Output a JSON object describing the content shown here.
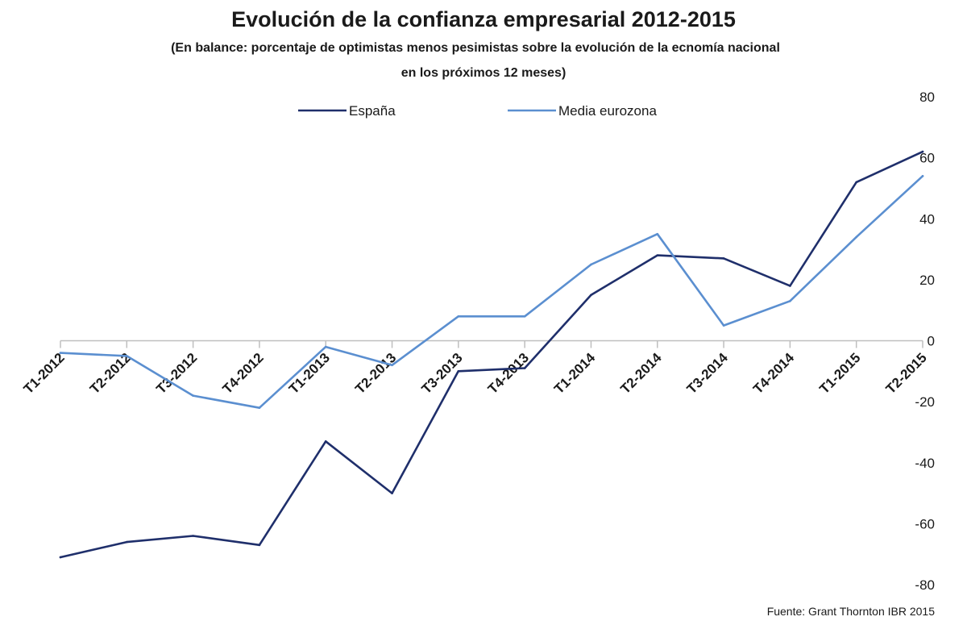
{
  "chart_data": {
    "type": "line",
    "title": "Evolución de la confianza empresarial 2012-2015",
    "subtitle_line1": "(En balance: porcentaje de optimistas menos pesimistas sobre la evolución de la ecnomía nacional",
    "subtitle_line2": "en los próximos 12 meses)",
    "categories": [
      "T1-2012",
      "T2-2012",
      "T3-2012",
      "T4-2012",
      "T1-2013",
      "T2-2013",
      "T3-2013",
      "T4-2013",
      "T1-2014",
      "T2-2014",
      "T3-2014",
      "T4-2014",
      "T1-2015",
      "T2-2015"
    ],
    "series": [
      {
        "name": "España",
        "color": "#1f2f6b",
        "values": [
          -71,
          -66,
          -64,
          -67,
          -33,
          -50,
          -10,
          -9,
          15,
          28,
          27,
          18,
          52,
          62
        ]
      },
      {
        "name": "Media eurozona",
        "color": "#5b8fd0",
        "values": [
          -4,
          -5,
          -18,
          -22,
          -2,
          -8,
          8,
          8,
          25,
          35,
          5,
          13,
          34,
          54
        ]
      }
    ],
    "ylim": [
      -80,
      80
    ],
    "yticks": [
      80,
      60,
      40,
      20,
      0,
      -20,
      -40,
      -60,
      -80
    ],
    "y_axis_position": "right",
    "grid": false,
    "legend_position": "top-center",
    "source": "Fuente: Grant Thornton  IBR 2015"
  }
}
